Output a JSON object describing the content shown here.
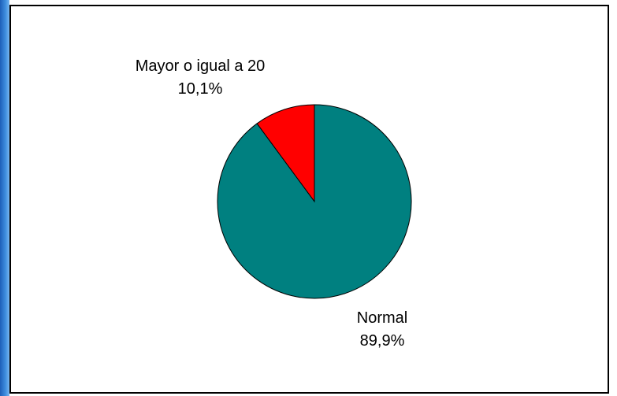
{
  "chart_data": {
    "type": "pie",
    "title": "",
    "slices": [
      {
        "label": "Mayor o igual a 20",
        "value": 10.1,
        "value_label": "10,1%",
        "color": "#ff0000"
      },
      {
        "label": "Normal",
        "value": 89.9,
        "value_label": "89,9%",
        "color": "#008080"
      }
    ],
    "legend": "none"
  },
  "colors": {
    "frame_border": "#000000",
    "slice_outline": "#000000"
  }
}
